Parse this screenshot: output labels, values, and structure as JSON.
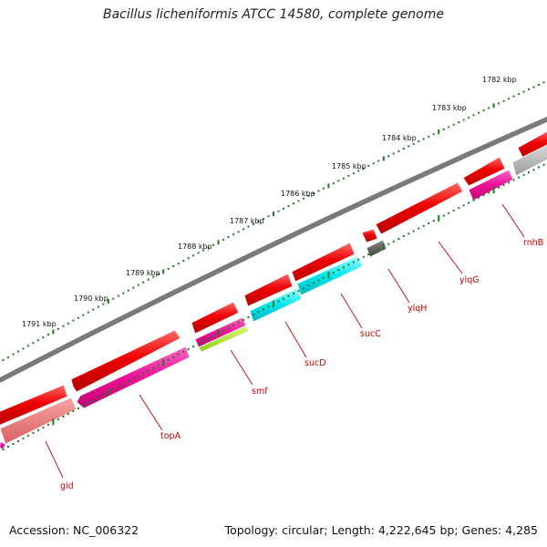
{
  "title": "Bacillus licheniformis ATCC 14580, complete genome",
  "footer": {
    "accession": "Accession: NC_006322",
    "summary": "Topology: circular; Length: 4,222,645 bp; Genes: 4,285"
  },
  "colors": {
    "backbone": "#7a7a7a",
    "ticks": "#1f7a1f",
    "gene_red": "#ee0000",
    "gene_pink": "#ee1199",
    "gene_cyan": "#00e6ee",
    "gene_green": "#99dd22",
    "gene_gray": "#aaaaaa",
    "label": "#cc0000"
  },
  "kbp_ticks": [
    "1782 kbp",
    "1783 kbp",
    "1784 kbp",
    "1785 kbp",
    "1786 kbp",
    "1787 kbp",
    "1788 kbp",
    "1789 kbp",
    "1790 kbp",
    "1791 kbp"
  ],
  "gene_labels": [
    "rnhB",
    "ylqG",
    "ylqH",
    "sucC",
    "sucD",
    "smf",
    "topA",
    "gid"
  ]
}
